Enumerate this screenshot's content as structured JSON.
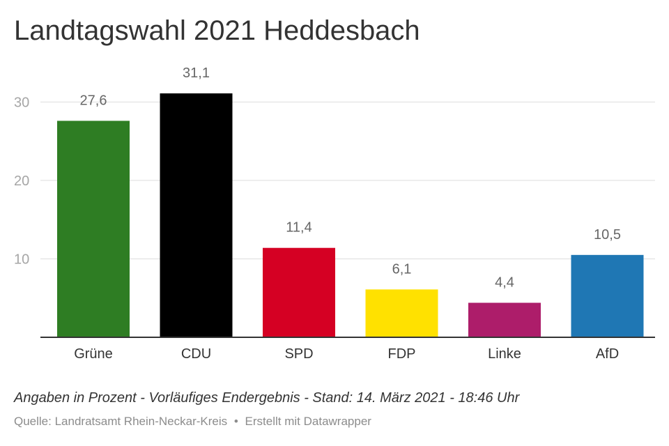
{
  "chart_data": {
    "type": "bar",
    "title": "Landtagswahl 2021 Heddesbach",
    "categories": [
      "Grüne",
      "CDU",
      "SPD",
      "FDP",
      "Linke",
      "AfD"
    ],
    "values": [
      27.6,
      31.1,
      11.4,
      6.1,
      4.4,
      10.5
    ],
    "value_labels": [
      "27,6",
      "31,1",
      "11,4",
      "6,1",
      "4,4",
      "10,5"
    ],
    "colors": [
      "#2e7d23",
      "#000000",
      "#d50023",
      "#ffe100",
      "#ad1d6a",
      "#1f77b4"
    ],
    "yticks": [
      10,
      20,
      30
    ],
    "ylim": [
      0,
      31.1
    ],
    "grid": true,
    "xlabel": "",
    "ylabel": ""
  },
  "footer": {
    "notes": "Angaben in Prozent - Vorläufiges Endergebnis - Stand: 14. März 2021 - 18:46 Uhr",
    "source_label": "Quelle: Landratsamt Rhein-Neckar-Kreis",
    "separator": "•",
    "credit": "Erstellt mit Datawrapper"
  }
}
